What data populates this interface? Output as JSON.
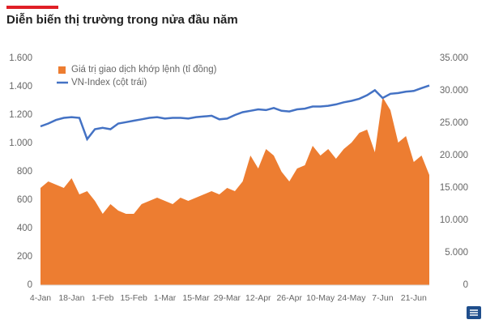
{
  "chart_data": {
    "type": "area-line",
    "title": "Diễn biến thị trường trong nửa đầu năm",
    "categories": [
      "4-Jan",
      null,
      null,
      null,
      "18-Jan",
      null,
      null,
      null,
      "1-Feb",
      null,
      null,
      null,
      "15-Feb",
      null,
      null,
      null,
      "1-Mar",
      null,
      null,
      null,
      "15-Mar",
      null,
      null,
      null,
      "29-Mar",
      null,
      null,
      null,
      "12-Apr",
      null,
      null,
      null,
      "26-Apr",
      null,
      null,
      null,
      "10-May",
      null,
      null,
      null,
      "24-May",
      null,
      null,
      null,
      "7-Jun",
      null,
      null,
      null,
      "21-Jun",
      null,
      null
    ],
    "series": [
      {
        "name": "Giá trị giao dịch khớp lệnh (tỉ đồng)",
        "color": "#ed7d31",
        "kind": "area",
        "axis": "y2",
        "values": [
          15000,
          16000,
          15500,
          15000,
          16500,
          14000,
          14500,
          13000,
          11000,
          12500,
          11500,
          11000,
          11000,
          12500,
          13000,
          13500,
          13000,
          12500,
          13500,
          13000,
          13500,
          14000,
          14500,
          14000,
          15000,
          14500,
          16000,
          20000,
          18000,
          21000,
          20000,
          17500,
          16000,
          18000,
          18500,
          21500,
          20000,
          21000,
          19500,
          21000,
          22000,
          23500,
          24000,
          20500,
          29000,
          27000,
          22000,
          23000,
          19000,
          20000,
          17000
        ]
      },
      {
        "name": "VN-Index (cột trái)",
        "color": "#4472c4",
        "kind": "line",
        "axis": "y",
        "values": [
          1120,
          1140,
          1165,
          1180,
          1185,
          1180,
          1030,
          1100,
          1110,
          1100,
          1140,
          1150,
          1160,
          1170,
          1180,
          1185,
          1175,
          1180,
          1180,
          1175,
          1185,
          1190,
          1195,
          1170,
          1175,
          1200,
          1220,
          1230,
          1240,
          1235,
          1250,
          1230,
          1225,
          1240,
          1245,
          1260,
          1260,
          1265,
          1275,
          1290,
          1300,
          1315,
          1340,
          1375,
          1320,
          1350,
          1355,
          1365,
          1370,
          1390,
          1408
        ]
      }
    ],
    "ylim": [
      0,
      1600
    ],
    "yticks": [
      0,
      200,
      400,
      600,
      800,
      {
        "value": 1000,
        "label": "1.000"
      },
      {
        "value": 1200,
        "label": "1.200"
      },
      {
        "value": 1400,
        "label": "1.400"
      },
      {
        "value": 1600,
        "label": "1.600"
      }
    ],
    "y2lim": [
      0,
      35000
    ],
    "y2ticks": [
      0,
      {
        "value": 5000,
        "label": "5.000"
      },
      {
        "value": 10000,
        "label": "10.000"
      },
      {
        "value": 15000,
        "label": "15.000"
      },
      {
        "value": 20000,
        "label": "20.000"
      },
      {
        "value": 25000,
        "label": "25.000"
      },
      {
        "value": 30000,
        "label": "30.000"
      },
      {
        "value": 35000,
        "label": "35.000"
      }
    ],
    "legend": "top-left"
  }
}
